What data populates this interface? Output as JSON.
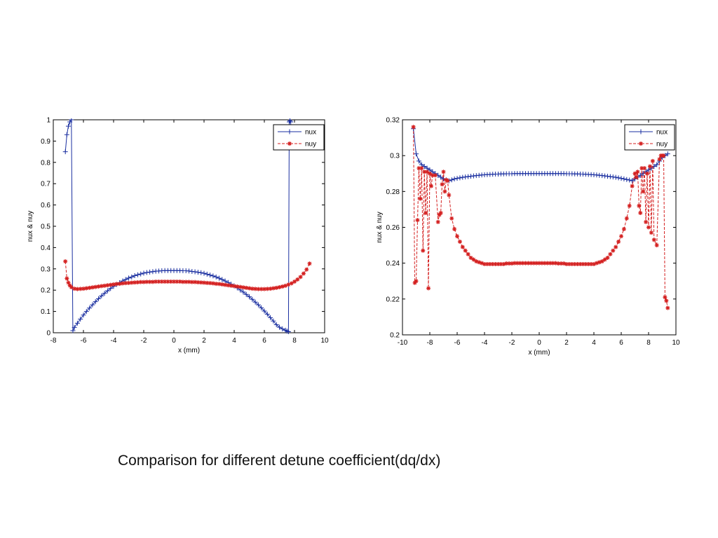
{
  "caption": "Comparison for different detune coefficient(dq/dx)",
  "colors": {
    "nux": "#1a2fa0",
    "nuy": "#d42020"
  },
  "chart_data": [
    {
      "type": "line",
      "xlabel": "x (mm)",
      "ylabel": "nux & nuy",
      "xlim": [
        -8,
        10
      ],
      "ylim": [
        0,
        1
      ],
      "xticks": [
        -8,
        -6,
        -4,
        -2,
        0,
        2,
        4,
        6,
        8,
        10
      ],
      "yticks": [
        0,
        0.1,
        0.2,
        0.3,
        0.4,
        0.5,
        0.6,
        0.7,
        0.8,
        0.9,
        1
      ],
      "ytick_labels": [
        "0",
        "0.1",
        "0.2",
        "0.3",
        "0.4",
        "0.5",
        "0.6",
        "0.7",
        "0.8",
        "0.9",
        "1"
      ],
      "legend": "top-right",
      "series": [
        {
          "name": "nux",
          "color": "#1a2fa0",
          "marker": "+",
          "linestyle": "solid",
          "x": [
            -7.2,
            -7.1,
            -7.0,
            -6.9,
            -6.8,
            -6.7,
            -6.6,
            -6.4,
            -6.2,
            -6.0,
            -5.8,
            -5.6,
            -5.4,
            -5.2,
            -5.0,
            -4.8,
            -4.6,
            -4.4,
            -4.2,
            -4.0,
            -3.8,
            -3.6,
            -3.4,
            -3.2,
            -3.0,
            -2.8,
            -2.6,
            -2.4,
            -2.2,
            -2.0,
            -1.8,
            -1.6,
            -1.4,
            -1.2,
            -1.0,
            -0.8,
            -0.6,
            -0.4,
            -0.2,
            0.0,
            0.2,
            0.4,
            0.6,
            0.8,
            1.0,
            1.2,
            1.4,
            1.6,
            1.8,
            2.0,
            2.2,
            2.4,
            2.6,
            2.8,
            3.0,
            3.2,
            3.4,
            3.6,
            3.8,
            4.0,
            4.2,
            4.4,
            4.6,
            4.8,
            5.0,
            5.2,
            5.4,
            5.6,
            5.8,
            6.0,
            6.2,
            6.4,
            6.6,
            6.8,
            7.0,
            7.2,
            7.4,
            7.5,
            7.6,
            7.65,
            7.7,
            7.75
          ],
          "y": [
            0.85,
            0.93,
            0.97,
            0.99,
            1.0,
            0.01,
            0.025,
            0.045,
            0.064,
            0.083,
            0.1,
            0.116,
            0.131,
            0.146,
            0.16,
            0.173,
            0.185,
            0.197,
            0.208,
            0.218,
            0.227,
            0.235,
            0.243,
            0.25,
            0.257,
            0.262,
            0.268,
            0.272,
            0.276,
            0.28,
            0.283,
            0.285,
            0.287,
            0.289,
            0.29,
            0.291,
            0.292,
            0.292,
            0.292,
            0.292,
            0.292,
            0.292,
            0.291,
            0.291,
            0.29,
            0.288,
            0.286,
            0.284,
            0.282,
            0.279,
            0.275,
            0.271,
            0.267,
            0.262,
            0.256,
            0.25,
            0.243,
            0.236,
            0.228,
            0.22,
            0.211,
            0.201,
            0.191,
            0.18,
            0.169,
            0.157,
            0.144,
            0.131,
            0.117,
            0.102,
            0.087,
            0.071,
            0.055,
            0.038,
            0.026,
            0.018,
            0.012,
            0.008,
            0.005,
            0.99,
            0.995,
            0.99
          ]
        },
        {
          "name": "nuy",
          "color": "#d42020",
          "marker": "*",
          "linestyle": "dashed",
          "x": [
            -7.2,
            -7.1,
            -7.0,
            -6.9,
            -6.8,
            -6.6,
            -6.4,
            -6.2,
            -6.0,
            -5.8,
            -5.6,
            -5.4,
            -5.2,
            -5.0,
            -4.8,
            -4.6,
            -4.4,
            -4.2,
            -4.0,
            -3.8,
            -3.6,
            -3.4,
            -3.2,
            -3.0,
            -2.8,
            -2.6,
            -2.4,
            -2.2,
            -2.0,
            -1.8,
            -1.6,
            -1.4,
            -1.2,
            -1.0,
            -0.8,
            -0.6,
            -0.4,
            -0.2,
            0.0,
            0.2,
            0.4,
            0.6,
            0.8,
            1.0,
            1.2,
            1.4,
            1.6,
            1.8,
            2.0,
            2.2,
            2.4,
            2.6,
            2.8,
            3.0,
            3.2,
            3.4,
            3.6,
            3.8,
            4.0,
            4.2,
            4.4,
            4.6,
            4.8,
            5.0,
            5.2,
            5.4,
            5.6,
            5.8,
            6.0,
            6.2,
            6.4,
            6.6,
            6.8,
            7.0,
            7.2,
            7.4,
            7.6,
            7.8,
            8.0,
            8.2,
            8.4,
            8.6,
            8.8,
            9.0
          ],
          "y": [
            0.335,
            0.255,
            0.235,
            0.222,
            0.214,
            0.207,
            0.205,
            0.206,
            0.207,
            0.209,
            0.211,
            0.213,
            0.215,
            0.217,
            0.219,
            0.221,
            0.223,
            0.225,
            0.227,
            0.229,
            0.23,
            0.232,
            0.233,
            0.234,
            0.235,
            0.236,
            0.237,
            0.238,
            0.238,
            0.239,
            0.239,
            0.239,
            0.24,
            0.24,
            0.24,
            0.24,
            0.24,
            0.24,
            0.24,
            0.24,
            0.24,
            0.239,
            0.239,
            0.239,
            0.238,
            0.238,
            0.237,
            0.236,
            0.235,
            0.234,
            0.233,
            0.232,
            0.23,
            0.229,
            0.227,
            0.225,
            0.223,
            0.221,
            0.219,
            0.217,
            0.215,
            0.213,
            0.211,
            0.209,
            0.207,
            0.206,
            0.205,
            0.205,
            0.205,
            0.206,
            0.207,
            0.209,
            0.211,
            0.214,
            0.217,
            0.221,
            0.226,
            0.232,
            0.24,
            0.25,
            0.262,
            0.278,
            0.297,
            0.325
          ]
        }
      ]
    },
    {
      "type": "line",
      "xlabel": "x (mm)",
      "ylabel": "nux & nuy",
      "xlim": [
        -10,
        10
      ],
      "ylim": [
        0.2,
        0.32
      ],
      "xticks": [
        -10,
        -8,
        -6,
        -4,
        -2,
        0,
        2,
        4,
        6,
        8,
        10
      ],
      "yticks": [
        0.2,
        0.22,
        0.24,
        0.26,
        0.28,
        0.3,
        0.32
      ],
      "ytick_labels": [
        "0.2",
        "0.22",
        "0.24",
        "0.26",
        "0.28",
        "0.3",
        "0.32"
      ],
      "legend": "top-right",
      "series": [
        {
          "name": "nux",
          "color": "#1a2fa0",
          "marker": "+",
          "linestyle": "solid",
          "x": [
            -9.2,
            -9.0,
            -8.8,
            -8.6,
            -8.4,
            -8.2,
            -8.0,
            -7.8,
            -7.6,
            -7.4,
            -7.2,
            -7.0,
            -6.8,
            -6.6,
            -6.4,
            -6.2,
            -6.0,
            -5.8,
            -5.6,
            -5.4,
            -5.2,
            -5.0,
            -4.8,
            -4.6,
            -4.4,
            -4.2,
            -4.0,
            -3.8,
            -3.6,
            -3.4,
            -3.2,
            -3.0,
            -2.8,
            -2.6,
            -2.4,
            -2.2,
            -2.0,
            -1.8,
            -1.6,
            -1.4,
            -1.2,
            -1.0,
            -0.8,
            -0.6,
            -0.4,
            -0.2,
            0.0,
            0.2,
            0.4,
            0.6,
            0.8,
            1.0,
            1.2,
            1.4,
            1.6,
            1.8,
            2.0,
            2.2,
            2.4,
            2.6,
            2.8,
            3.0,
            3.2,
            3.4,
            3.6,
            3.8,
            4.0,
            4.2,
            4.4,
            4.6,
            4.8,
            5.0,
            5.2,
            5.4,
            5.6,
            5.8,
            6.0,
            6.2,
            6.4,
            6.6,
            6.8,
            7.0,
            7.2,
            7.4,
            7.6,
            7.8,
            8.0,
            8.2,
            8.4,
            8.6,
            8.8,
            9.0,
            9.2,
            9.4
          ],
          "y": [
            0.315,
            0.301,
            0.297,
            0.295,
            0.294,
            0.293,
            0.292,
            0.291,
            0.29,
            0.289,
            0.288,
            0.287,
            0.2865,
            0.286,
            0.2865,
            0.287,
            0.2873,
            0.2876,
            0.2879,
            0.2881,
            0.2883,
            0.2885,
            0.2887,
            0.2889,
            0.289,
            0.2892,
            0.2893,
            0.2894,
            0.2895,
            0.2896,
            0.2897,
            0.2897,
            0.2898,
            0.2898,
            0.2899,
            0.2899,
            0.2899,
            0.29,
            0.29,
            0.29,
            0.29,
            0.29,
            0.29,
            0.29,
            0.29,
            0.29,
            0.29,
            0.29,
            0.29,
            0.29,
            0.29,
            0.29,
            0.29,
            0.29,
            0.29,
            0.29,
            0.2899,
            0.2899,
            0.2899,
            0.2898,
            0.2898,
            0.2897,
            0.2897,
            0.2896,
            0.2895,
            0.2894,
            0.2893,
            0.2892,
            0.289,
            0.2889,
            0.2887,
            0.2885,
            0.2883,
            0.2881,
            0.2879,
            0.2876,
            0.2873,
            0.287,
            0.2867,
            0.2864,
            0.286,
            0.287,
            0.288,
            0.289,
            0.29,
            0.291,
            0.292,
            0.293,
            0.294,
            0.295,
            0.297,
            0.299,
            0.3,
            0.301
          ]
        },
        {
          "name": "nuy",
          "color": "#d42020",
          "marker": "*",
          "linestyle": "dashed",
          "x": [
            -9.2,
            -9.1,
            -9.0,
            -8.9,
            -8.8,
            -8.7,
            -8.6,
            -8.5,
            -8.4,
            -8.3,
            -8.2,
            -8.1,
            -8.0,
            -7.9,
            -7.8,
            -7.6,
            -7.4,
            -7.3,
            -7.2,
            -7.1,
            -7.0,
            -6.9,
            -6.8,
            -6.7,
            -6.6,
            -6.4,
            -6.2,
            -6.0,
            -5.8,
            -5.6,
            -5.4,
            -5.2,
            -5.0,
            -4.8,
            -4.6,
            -4.4,
            -4.2,
            -4.0,
            -3.8,
            -3.6,
            -3.4,
            -3.2,
            -3.0,
            -2.8,
            -2.6,
            -2.4,
            -2.2,
            -2.0,
            -1.8,
            -1.6,
            -1.4,
            -1.2,
            -1.0,
            -0.8,
            -0.6,
            -0.4,
            -0.2,
            0.0,
            0.2,
            0.4,
            0.6,
            0.8,
            1.0,
            1.2,
            1.4,
            1.6,
            1.8,
            2.0,
            2.2,
            2.4,
            2.6,
            2.8,
            3.0,
            3.2,
            3.4,
            3.6,
            3.8,
            4.0,
            4.2,
            4.4,
            4.6,
            4.8,
            5.0,
            5.2,
            5.4,
            5.6,
            5.8,
            6.0,
            6.2,
            6.4,
            6.6,
            6.8,
            7.0,
            7.1,
            7.2,
            7.3,
            7.4,
            7.5,
            7.6,
            7.7,
            7.8,
            7.9,
            8.0,
            8.1,
            8.2,
            8.3,
            8.4,
            8.6,
            8.8,
            8.9,
            9.0,
            9.1,
            9.2,
            9.3,
            9.4
          ],
          "y": [
            0.316,
            0.229,
            0.23,
            0.264,
            0.293,
            0.276,
            0.293,
            0.247,
            0.291,
            0.268,
            0.291,
            0.226,
            0.29,
            0.283,
            0.289,
            0.289,
            0.263,
            0.267,
            0.268,
            0.284,
            0.291,
            0.28,
            0.2865,
            0.286,
            0.278,
            0.265,
            0.259,
            0.255,
            0.252,
            0.249,
            0.247,
            0.245,
            0.243,
            0.242,
            0.241,
            0.2405,
            0.24,
            0.2395,
            0.2395,
            0.2395,
            0.2395,
            0.2395,
            0.2395,
            0.2395,
            0.2395,
            0.2398,
            0.2398,
            0.2398,
            0.24,
            0.24,
            0.24,
            0.24,
            0.24,
            0.24,
            0.24,
            0.24,
            0.24,
            0.24,
            0.24,
            0.24,
            0.24,
            0.24,
            0.24,
            0.24,
            0.2398,
            0.2398,
            0.2398,
            0.2395,
            0.2395,
            0.2395,
            0.2395,
            0.2395,
            0.2395,
            0.2395,
            0.2395,
            0.2395,
            0.2395,
            0.2395,
            0.24,
            0.2405,
            0.241,
            0.242,
            0.243,
            0.245,
            0.247,
            0.249,
            0.252,
            0.255,
            0.259,
            0.265,
            0.272,
            0.283,
            0.29,
            0.288,
            0.291,
            0.272,
            0.268,
            0.293,
            0.28,
            0.293,
            0.263,
            0.29,
            0.26,
            0.294,
            0.257,
            0.297,
            0.253,
            0.25,
            0.298,
            0.3,
            0.3,
            0.3,
            0.221,
            0.219,
            0.215
          ]
        }
      ]
    }
  ]
}
